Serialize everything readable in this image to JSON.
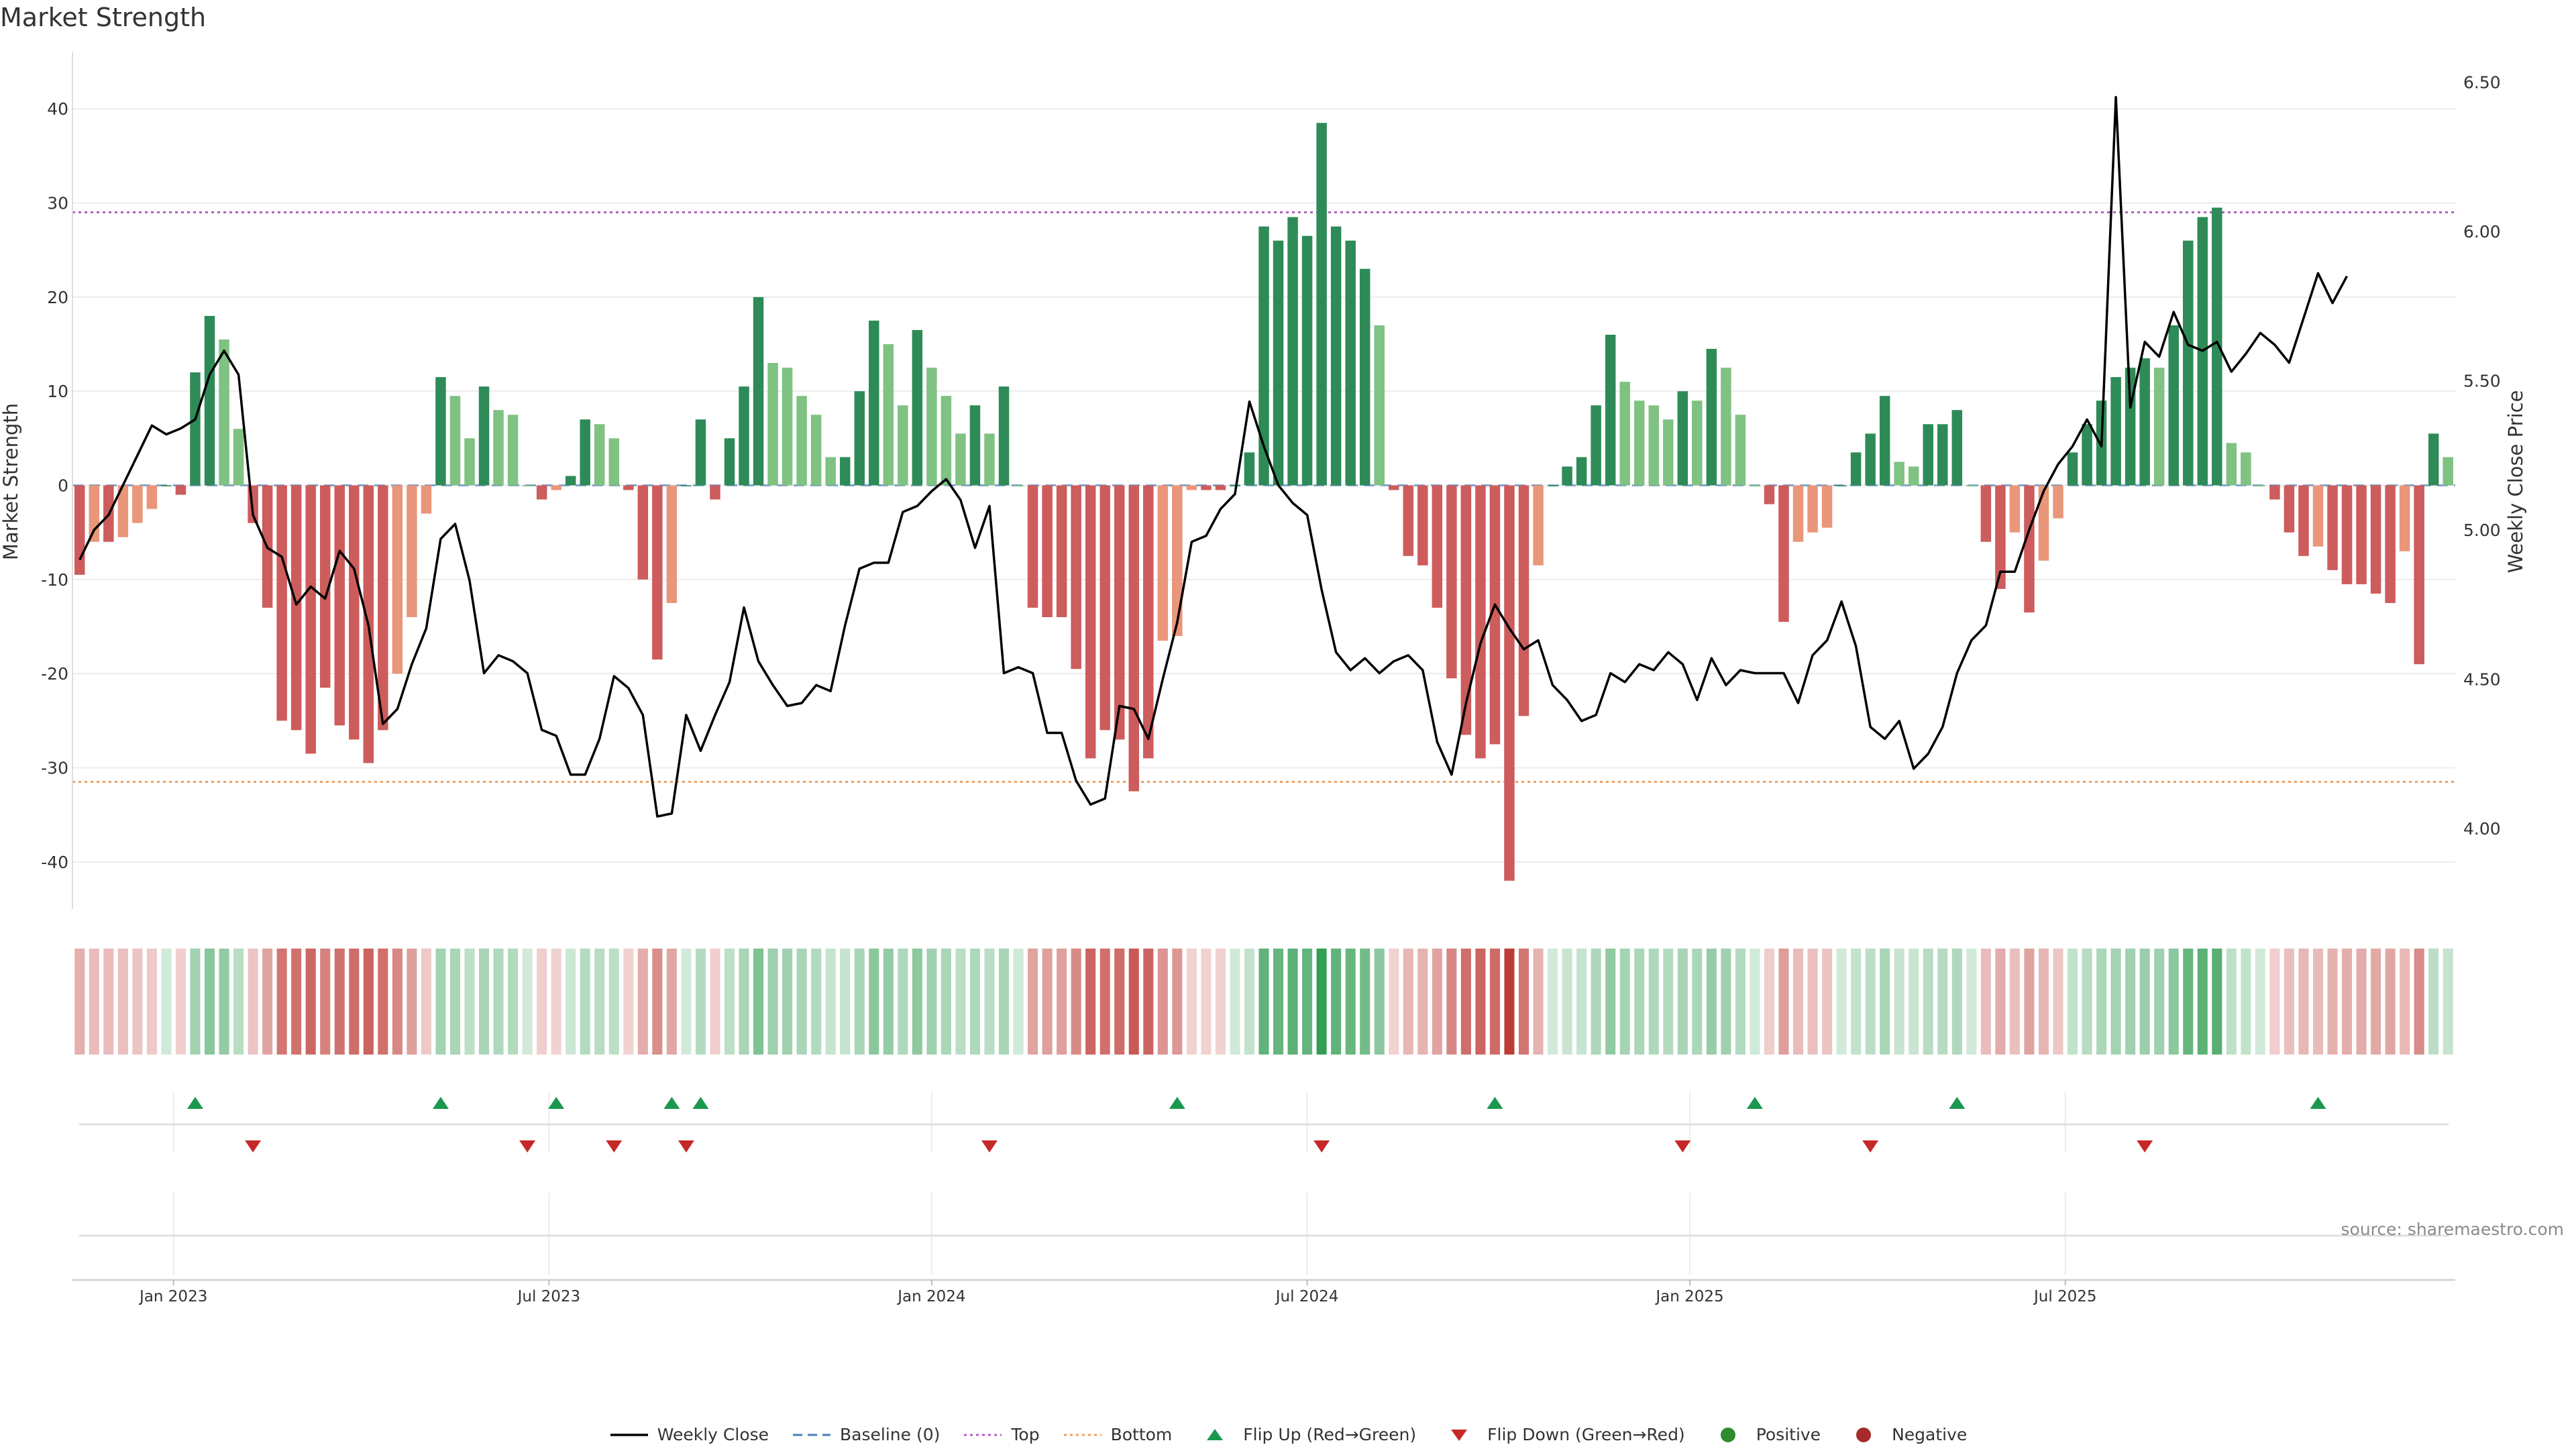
{
  "title": "Market Strength",
  "source": "source: sharemaestro.com",
  "colors": {
    "strong_green": "#2e8b57",
    "light_green": "#7fc282",
    "strong_red": "#cd5c5c",
    "light_red": "#e9967a",
    "top_line": "#b05fc0",
    "bottom_line": "#f0a060",
    "baseline": "#4a7fb5",
    "price_line": "#000000",
    "flip_up": "#1a9850",
    "flip_down": "#c62828"
  },
  "legend": [
    {
      "label": "Weekly Close",
      "icon": "solid-line-icon",
      "color": "#000000"
    },
    {
      "label": "Baseline (0)",
      "icon": "dashed-line-icon",
      "color": "#4a7fb5"
    },
    {
      "label": "Top",
      "icon": "dotted-line-icon",
      "color": "#b05fc0"
    },
    {
      "label": "Bottom",
      "icon": "dotted-line-icon",
      "color": "#f0a060"
    },
    {
      "label": "Flip Up (Red→Green)",
      "icon": "triangle-up-icon",
      "color": "#1a9850"
    },
    {
      "label": "Flip Down (Green→Red)",
      "icon": "triangle-down-icon",
      "color": "#c62828"
    },
    {
      "label": "Positive",
      "icon": "circle-icon",
      "color": "#2e8b2e"
    },
    {
      "label": "Negative",
      "icon": "circle-icon",
      "color": "#a52a2a"
    }
  ],
  "chart_data": {
    "type": "bar",
    "title": "Market Strength",
    "ylabel": "Market Strength",
    "y2label": "Weekly Close Price",
    "ylim": [
      -45,
      46
    ],
    "y2lim": [
      3.73,
      6.6
    ],
    "yticks": [
      -40,
      -30,
      -20,
      -10,
      0,
      10,
      20,
      30,
      40
    ],
    "y2ticks": [
      "4.00",
      "4.50",
      "5.00",
      "5.50",
      "6.00",
      "6.50"
    ],
    "x_date_ticks": [
      {
        "label": "Jan 2023",
        "week": 7
      },
      {
        "label": "Jul 2023",
        "week": 33
      },
      {
        "label": "Jan 2024",
        "week": 59.5
      },
      {
        "label": "Jul 2024",
        "week": 85.5
      },
      {
        "label": "Jan 2025",
        "week": 112
      },
      {
        "label": "Jul 2025",
        "week": 138
      }
    ],
    "top_level": 29,
    "bottom_level": -31.5,
    "baseline": 0,
    "strength": [
      -9.5,
      -6,
      -6,
      -5.5,
      -4,
      -2.5,
      0,
      -1,
      12,
      18,
      15.5,
      6,
      -4,
      -13,
      -25,
      -26,
      -28.5,
      -21.5,
      -25.5,
      -27,
      -29.5,
      -26,
      -20,
      -14,
      -3,
      11.5,
      9.5,
      5,
      10.5,
      8,
      7.5,
      0,
      -1.5,
      -0.5,
      1,
      7,
      6.5,
      5,
      -0.5,
      -10,
      -18.5,
      -12.5,
      0,
      7,
      -1.5,
      5,
      10.5,
      20,
      13,
      12.5,
      9.5,
      7.5,
      3,
      3,
      10,
      17.5,
      15,
      8.5,
      16.5,
      12.5,
      9.5,
      5.5,
      8.5,
      5.5,
      10.5,
      0,
      -13,
      -14,
      -14,
      -19.5,
      -29,
      -26,
      -27,
      -32.5,
      -29,
      -16.5,
      -16,
      -0.5,
      -0.5,
      -0.5,
      0,
      3.5,
      27.5,
      26,
      28.5,
      26.5,
      38.5,
      27.5,
      26,
      23,
      17,
      -0.5,
      -7.5,
      -8.5,
      -13,
      -20.5,
      -26.5,
      -29,
      -27.5,
      -42,
      -24.5,
      -8.5,
      0,
      2,
      3,
      8.5,
      16,
      11,
      9,
      8.5,
      7,
      10,
      9,
      14.5,
      12.5,
      7.5,
      0,
      -2,
      -14.5,
      -6,
      -5,
      -4.5,
      0,
      3.5,
      5.5,
      9.5,
      2.5,
      2,
      6.5,
      6.5,
      8,
      0,
      -6,
      -11,
      -5,
      -13.5,
      -8,
      -3.5,
      3.5,
      6.5,
      9,
      11.5,
      12.5,
      13.5,
      12.5,
      17,
      26,
      28.5,
      29.5,
      4.5,
      3.5,
      0,
      -1.5,
      -5,
      -7.5,
      -6.5,
      -9,
      -10.5,
      -10.5,
      -11.5,
      -12.5,
      -7,
      -19,
      5.5,
      3
    ],
    "weekly_close": [
      4.9,
      5.0,
      5.05,
      5.15,
      5.25,
      5.35,
      5.32,
      5.34,
      5.37,
      5.52,
      5.6,
      5.52,
      5.05,
      4.94,
      4.91,
      4.75,
      4.81,
      4.77,
      4.93,
      4.87,
      4.68,
      4.35,
      4.4,
      4.55,
      4.67,
      4.97,
      5.02,
      4.83,
      4.52,
      4.58,
      4.56,
      4.52,
      4.33,
      4.31,
      4.18,
      4.18,
      4.3,
      4.51,
      4.47,
      4.38,
      4.04,
      4.05,
      4.38,
      4.26,
      4.38,
      4.49,
      4.74,
      4.56,
      4.48,
      4.41,
      4.42,
      4.48,
      4.46,
      4.68,
      4.87,
      4.89,
      4.89,
      5.06,
      5.08,
      5.13,
      5.17,
      5.1,
      4.94,
      5.08,
      4.52,
      4.54,
      4.52,
      4.32,
      4.32,
      4.16,
      4.08,
      4.1,
      4.41,
      4.4,
      4.3,
      4.5,
      4.69,
      4.96,
      4.98,
      5.07,
      5.12,
      5.43,
      5.28,
      5.15,
      5.09,
      5.05,
      4.8,
      4.59,
      4.53,
      4.57,
      4.52,
      4.56,
      4.58,
      4.53,
      4.29,
      4.18,
      4.42,
      4.62,
      4.75,
      4.67,
      4.6,
      4.63,
      4.48,
      4.43,
      4.36,
      4.38,
      4.52,
      4.49,
      4.55,
      4.53,
      4.59,
      4.55,
      4.43,
      4.57,
      4.48,
      4.53,
      4.52,
      4.52,
      4.52,
      4.42,
      4.58,
      4.63,
      4.76,
      4.61,
      4.34,
      4.3,
      4.36,
      4.2,
      4.25,
      4.34,
      4.52,
      4.63,
      4.68,
      4.86,
      4.86,
      5.0,
      5.13,
      5.22,
      5.28,
      5.37,
      5.28,
      6.45,
      5.41,
      5.63,
      5.58,
      5.73,
      5.62,
      5.6,
      5.63,
      5.53,
      5.59,
      5.66,
      5.62,
      5.56,
      5.71,
      5.86,
      5.76,
      5.85
    ],
    "flip_up_weeks": [
      8,
      25,
      33,
      41,
      43,
      76,
      98,
      116,
      130,
      155
    ],
    "flip_down_weeks": [
      12,
      31,
      37,
      42,
      63,
      86,
      111,
      124,
      143
    ]
  }
}
